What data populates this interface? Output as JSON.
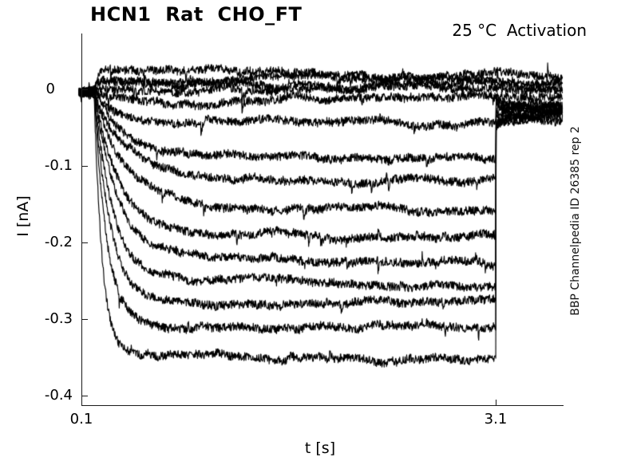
{
  "chart_data": {
    "type": "line",
    "title": "HCN1  Rat  CHO_FT",
    "annotation": "25 °C  Activation",
    "side_label": "BBP Channelpedia ID 26385 rep 2",
    "xlabel": "t [s]",
    "ylabel": "I [nA]",
    "xlim": [
      0.1,
      3.582
    ],
    "ylim": [
      -0.413,
      0.073
    ],
    "xticks": [
      0.1,
      3.1
    ],
    "xtick_labels": [
      "0.1",
      "3.1"
    ],
    "yticks": [
      0,
      -0.1,
      -0.2,
      -0.3,
      -0.4
    ],
    "ytick_labels": [
      "0",
      "-0.1",
      "-0.2",
      "-0.3",
      "-0.4"
    ],
    "grid": false,
    "legend": false,
    "line_color": "#000000",
    "axis_color": "#1a1a1a",
    "n_sweeps": 15,
    "units": {
      "x": "s",
      "y": "nA"
    },
    "protocol": {
      "sweep_start_s": 0.085,
      "step_start_s": 0.195,
      "step_end_s": 3.1,
      "sweep_end_s": 3.58,
      "baseline_nA": -0.004,
      "tail_tau_s": 0.09,
      "noise_pp_nA": 0.011
    },
    "series": [
      {
        "steady_nA": 0.022,
        "tau_s": 0.02,
        "tail_start_nA": 0.022,
        "tail_end_nA": 0.019
      },
      {
        "steady_nA": 0.015,
        "tau_s": 0.02,
        "tail_start_nA": 0.015,
        "tail_end_nA": 0.012
      },
      {
        "steady_nA": 0.008,
        "tau_s": 0.02,
        "tail_start_nA": 0.008,
        "tail_end_nA": 0.005
      },
      {
        "steady_nA": 0.001,
        "tau_s": 0.02,
        "tail_start_nA": 0.0,
        "tail_end_nA": -0.002
      },
      {
        "steady_nA": -0.008,
        "tau_s": 0.05,
        "tail_start_nA": -0.009,
        "tail_end_nA": -0.01
      },
      {
        "steady_nA": -0.045,
        "tau_s": 0.17,
        "tail_start_nA": -0.013,
        "tail_end_nA": -0.027
      },
      {
        "steady_nA": -0.086,
        "tau_s": 0.2,
        "tail_start_nA": -0.017,
        "tail_end_nA": -0.027
      },
      {
        "steady_nA": -0.121,
        "tau_s": 0.21,
        "tail_start_nA": -0.022,
        "tail_end_nA": -0.028
      },
      {
        "steady_nA": -0.154,
        "tau_s": 0.21,
        "tail_start_nA": -0.027,
        "tail_end_nA": -0.028
      },
      {
        "steady_nA": -0.193,
        "tau_s": 0.19,
        "tail_start_nA": -0.031,
        "tail_end_nA": -0.028
      },
      {
        "steady_nA": -0.222,
        "tau_s": 0.17,
        "tail_start_nA": -0.035,
        "tail_end_nA": -0.028
      },
      {
        "steady_nA": -0.251,
        "tau_s": 0.14,
        "tail_start_nA": -0.038,
        "tail_end_nA": -0.029
      },
      {
        "steady_nA": -0.276,
        "tau_s": 0.115,
        "tail_start_nA": -0.041,
        "tail_end_nA": -0.029
      },
      {
        "steady_nA": -0.307,
        "tau_s": 0.09,
        "tail_start_nA": -0.044,
        "tail_end_nA": -0.029
      },
      {
        "steady_nA": -0.349,
        "tau_s": 0.06,
        "tail_start_nA": -0.047,
        "tail_end_nA": -0.03
      }
    ]
  }
}
